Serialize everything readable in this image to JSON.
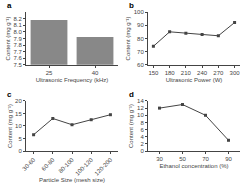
{
  "chart_data": [
    {
      "type": "bar",
      "title": "a",
      "categories": [
        "25",
        "40"
      ],
      "values": [
        8.18,
        7.92
      ],
      "color": "#888888",
      "xlabel": "Ultrasonic Frequency (kHz)",
      "ylabel": "Content (mg g⁻¹)",
      "ylim": [
        7.5,
        8.3
      ],
      "yticks": [
        7.5,
        7.6,
        7.7,
        7.8,
        7.9,
        {
          "value": 8.0,
          "label": "8.0"
        },
        8.1,
        8.2
      ],
      "grid": false
    },
    {
      "type": "line",
      "title": "b",
      "x": [
        150,
        180,
        210,
        240,
        270,
        300
      ],
      "values": [
        74,
        85,
        84,
        83,
        82,
        92
      ],
      "color": "#444444",
      "marker": "square",
      "xlabel": "Ultrasonic Power (W)",
      "ylabel": "Content (mg g⁻¹)",
      "xlim": [
        140,
        310
      ],
      "xticks": [
        150,
        180,
        210,
        240,
        270,
        300
      ],
      "ylim": [
        60,
        100
      ],
      "yticks": [
        60,
        70,
        80,
        90,
        100
      ],
      "grid": false
    },
    {
      "type": "line",
      "title": "c",
      "categories": [
        "30-60",
        "60-80",
        "80-100",
        "100-120",
        "120-200"
      ],
      "values": [
        6.5,
        13,
        10.5,
        12.5,
        14.5
      ],
      "color": "#444444",
      "marker": "square",
      "xlabel": "Particle Size (mesh size)",
      "ylabel": "Content (mg g⁻¹)",
      "ylim": [
        0,
        20
      ],
      "yticks": [
        0,
        5,
        10,
        15,
        20
      ],
      "grid": false
    },
    {
      "type": "line",
      "title": "d",
      "x": [
        30,
        50,
        70,
        90
      ],
      "values": [
        12,
        13,
        10,
        3
      ],
      "color": "#444444",
      "marker": "square",
      "xlabel": "Ethanol concentration (%)",
      "ylabel": "Content (mg g⁻¹)",
      "xlim": [
        20,
        100
      ],
      "xticks": [
        30,
        50,
        70,
        90
      ],
      "ylim": [
        0,
        14
      ],
      "yticks": [
        0,
        2,
        4,
        6,
        8,
        10,
        12,
        14
      ],
      "grid": false
    }
  ]
}
